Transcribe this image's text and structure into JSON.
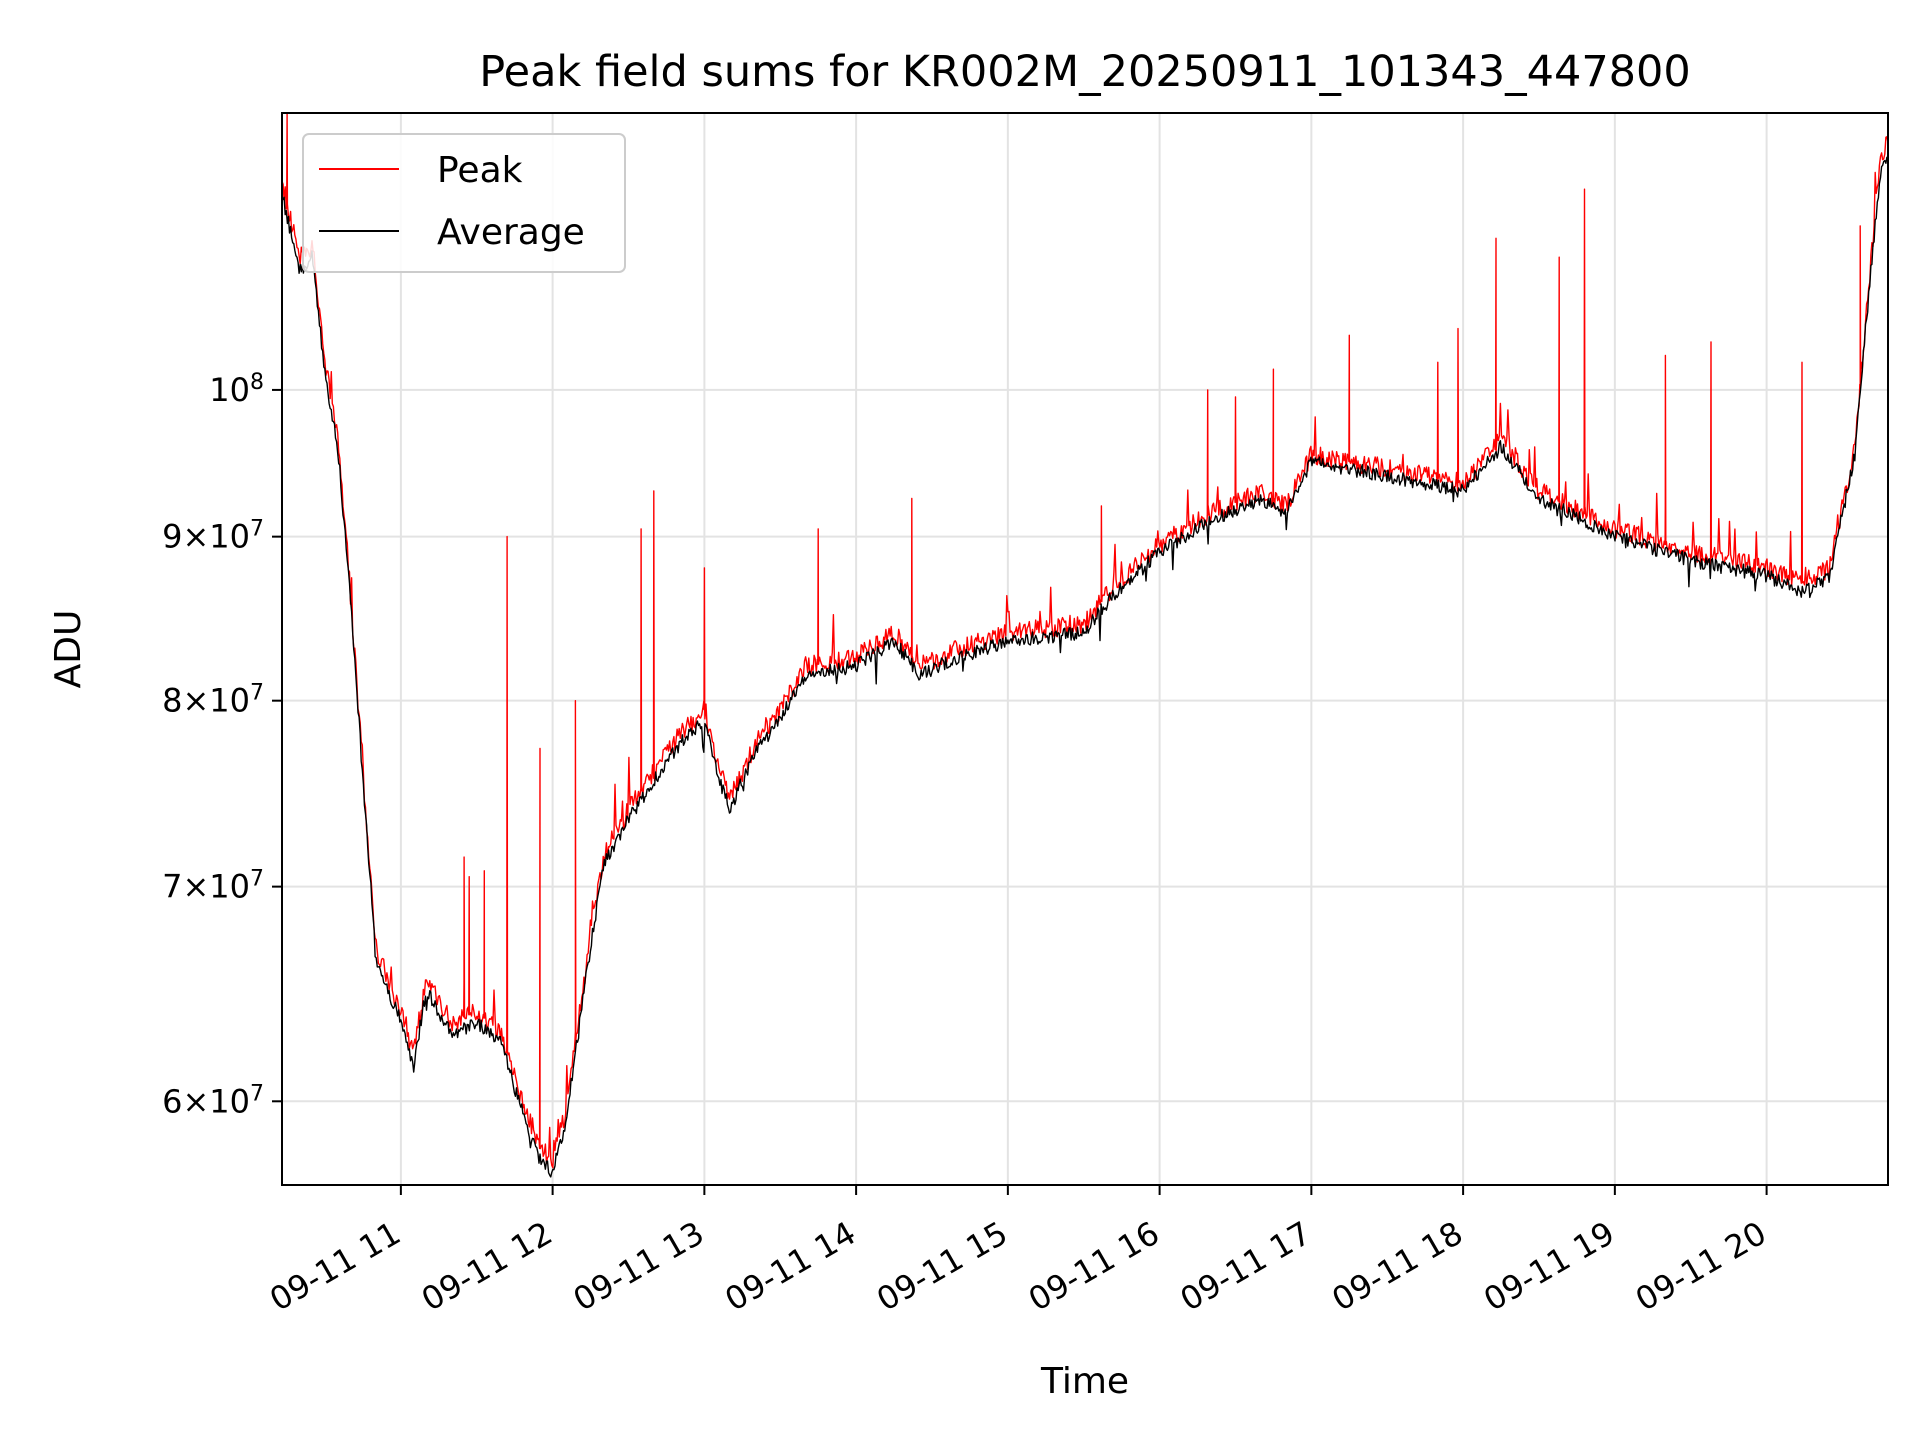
{
  "chart_data": {
    "type": "line",
    "title": "Peak field sums for KR002M_20250911_101343_447800",
    "xlabel": "Time",
    "ylabel": "ADU",
    "x_type": "datetime",
    "xlim": [
      "2025-09-11 10:13",
      "2025-09-11 20:48"
    ],
    "ylim": [
      56500000,
      122000000
    ],
    "yscale": "log",
    "grid": true,
    "legend_position": "top-left",
    "x_ticks": [
      {
        "value": "2025-09-11 11:00",
        "label": "09-11 11"
      },
      {
        "value": "2025-09-11 12:00",
        "label": "09-11 12"
      },
      {
        "value": "2025-09-11 13:00",
        "label": "09-11 13"
      },
      {
        "value": "2025-09-11 14:00",
        "label": "09-11 14"
      },
      {
        "value": "2025-09-11 15:00",
        "label": "09-11 15"
      },
      {
        "value": "2025-09-11 16:00",
        "label": "09-11 16"
      },
      {
        "value": "2025-09-11 17:00",
        "label": "09-11 17"
      },
      {
        "value": "2025-09-11 18:00",
        "label": "09-11 18"
      },
      {
        "value": "2025-09-11 19:00",
        "label": "09-11 19"
      },
      {
        "value": "2025-09-11 20:00",
        "label": "09-11 20"
      }
    ],
    "y_ticks": [
      {
        "value": 60000000,
        "coef": "6",
        "base": "10",
        "exp": "7"
      },
      {
        "value": 70000000,
        "coef": "7",
        "base": "10",
        "exp": "7"
      },
      {
        "value": 80000000,
        "coef": "8",
        "base": "10",
        "exp": "7"
      },
      {
        "value": 90000000,
        "coef": "9",
        "base": "10",
        "exp": "7"
      },
      {
        "value": 100000000,
        "coef": "",
        "base": "10",
        "exp": "8"
      }
    ],
    "series": [
      {
        "name": "Peak",
        "color": "#ff0000"
      },
      {
        "name": "Average",
        "color": "#000000"
      }
    ],
    "x": [
      "2025-09-11 10:13",
      "2025-09-11 10:20",
      "2025-09-11 10:25",
      "2025-09-11 10:30",
      "2025-09-11 10:35",
      "2025-09-11 10:40",
      "2025-09-11 10:45",
      "2025-09-11 10:50",
      "2025-09-11 10:55",
      "2025-09-11 11:00",
      "2025-09-11 11:05",
      "2025-09-11 11:10",
      "2025-09-11 11:20",
      "2025-09-11 11:30",
      "2025-09-11 11:40",
      "2025-09-11 11:45",
      "2025-09-11 11:50",
      "2025-09-11 11:55",
      "2025-09-11 12:00",
      "2025-09-11 12:05",
      "2025-09-11 12:10",
      "2025-09-11 12:15",
      "2025-09-11 12:20",
      "2025-09-11 12:30",
      "2025-09-11 12:40",
      "2025-09-11 12:50",
      "2025-09-11 13:00",
      "2025-09-11 13:05",
      "2025-09-11 13:10",
      "2025-09-11 13:15",
      "2025-09-11 13:20",
      "2025-09-11 13:30",
      "2025-09-11 13:40",
      "2025-09-11 14:00",
      "2025-09-11 14:15",
      "2025-09-11 14:25",
      "2025-09-11 14:40",
      "2025-09-11 15:00",
      "2025-09-11 15:30",
      "2025-09-11 15:40",
      "2025-09-11 16:00",
      "2025-09-11 16:20",
      "2025-09-11 16:40",
      "2025-09-11 16:50",
      "2025-09-11 17:00",
      "2025-09-11 17:30",
      "2025-09-11 18:00",
      "2025-09-11 18:15",
      "2025-09-11 18:30",
      "2025-09-11 19:00",
      "2025-09-11 19:30",
      "2025-09-11 20:00",
      "2025-09-11 20:15",
      "2025-09-11 20:25",
      "2025-09-11 20:35",
      "2025-09-11 20:45",
      "2025-09-11 20:48"
    ],
    "peak_values": [
      116000000,
      110000000,
      111000000,
      102000000,
      97000000,
      86500000,
      76000000,
      67000000,
      65500000,
      64000000,
      62000000,
      65500000,
      63500000,
      64000000,
      63000000,
      61000000,
      59500000,
      58000000,
      57500000,
      59500000,
      63500000,
      67500000,
      71500000,
      74000000,
      76000000,
      78000000,
      79500000,
      76500000,
      74500000,
      76000000,
      77500000,
      79500000,
      82000000,
      82500000,
      84000000,
      82000000,
      83000000,
      84000000,
      84500000,
      86500000,
      89500000,
      91500000,
      93000000,
      92000000,
      95500000,
      94500000,
      93500000,
      96500000,
      93000000,
      90500000,
      89000000,
      88000000,
      87000000,
      88000000,
      96000000,
      118000000,
      119500000
    ],
    "average_values": [
      115000000,
      109000000,
      110000000,
      101000000,
      96000000,
      86000000,
      75500000,
      66500000,
      65000000,
      63500000,
      61500000,
      65000000,
      63000000,
      63500000,
      62500000,
      60500000,
      59000000,
      57500000,
      57000000,
      59000000,
      63000000,
      67000000,
      71000000,
      73500000,
      75500000,
      77500000,
      79000000,
      76000000,
      74000000,
      75500000,
      77000000,
      79000000,
      81500000,
      82000000,
      83500000,
      81500000,
      82500000,
      83500000,
      84000000,
      86000000,
      89000000,
      91000000,
      92500000,
      91500000,
      95000000,
      94000000,
      93000000,
      96000000,
      92500000,
      90000000,
      88500000,
      87500000,
      86500000,
      87500000,
      95500000,
      117000000,
      118500000
    ],
    "peak_spikes": [
      {
        "x": "2025-09-11 10:15",
        "y": 122000000
      },
      {
        "x": "2025-09-11 11:25",
        "y": 71500000
      },
      {
        "x": "2025-09-11 11:27",
        "y": 70500000
      },
      {
        "x": "2025-09-11 11:33",
        "y": 70800000
      },
      {
        "x": "2025-09-11 11:42",
        "y": 90000000
      },
      {
        "x": "2025-09-11 11:55",
        "y": 77300000
      },
      {
        "x": "2025-09-11 12:09",
        "y": 80000000
      },
      {
        "x": "2025-09-11 12:35",
        "y": 90500000
      },
      {
        "x": "2025-09-11 12:40",
        "y": 93000000
      },
      {
        "x": "2025-09-11 13:00",
        "y": 88000000
      },
      {
        "x": "2025-09-11 13:45",
        "y": 90500000
      },
      {
        "x": "2025-09-11 14:22",
        "y": 92500000
      },
      {
        "x": "2025-09-11 15:37",
        "y": 92000000
      },
      {
        "x": "2025-09-11 16:19",
        "y": 100000000
      },
      {
        "x": "2025-09-11 16:30",
        "y": 99500000
      },
      {
        "x": "2025-09-11 16:45",
        "y": 101500000
      },
      {
        "x": "2025-09-11 17:15",
        "y": 104000000
      },
      {
        "x": "2025-09-11 17:50",
        "y": 102000000
      },
      {
        "x": "2025-09-11 17:58",
        "y": 104500000
      },
      {
        "x": "2025-09-11 18:13",
        "y": 111500000
      },
      {
        "x": "2025-09-11 18:38",
        "y": 110000000
      },
      {
        "x": "2025-09-11 18:48",
        "y": 115500000
      },
      {
        "x": "2025-09-11 19:20",
        "y": 102500000
      },
      {
        "x": "2025-09-11 19:38",
        "y": 103500000
      },
      {
        "x": "2025-09-11 20:14",
        "y": 102000000
      },
      {
        "x": "2025-09-11 20:37",
        "y": 112500000
      }
    ]
  }
}
